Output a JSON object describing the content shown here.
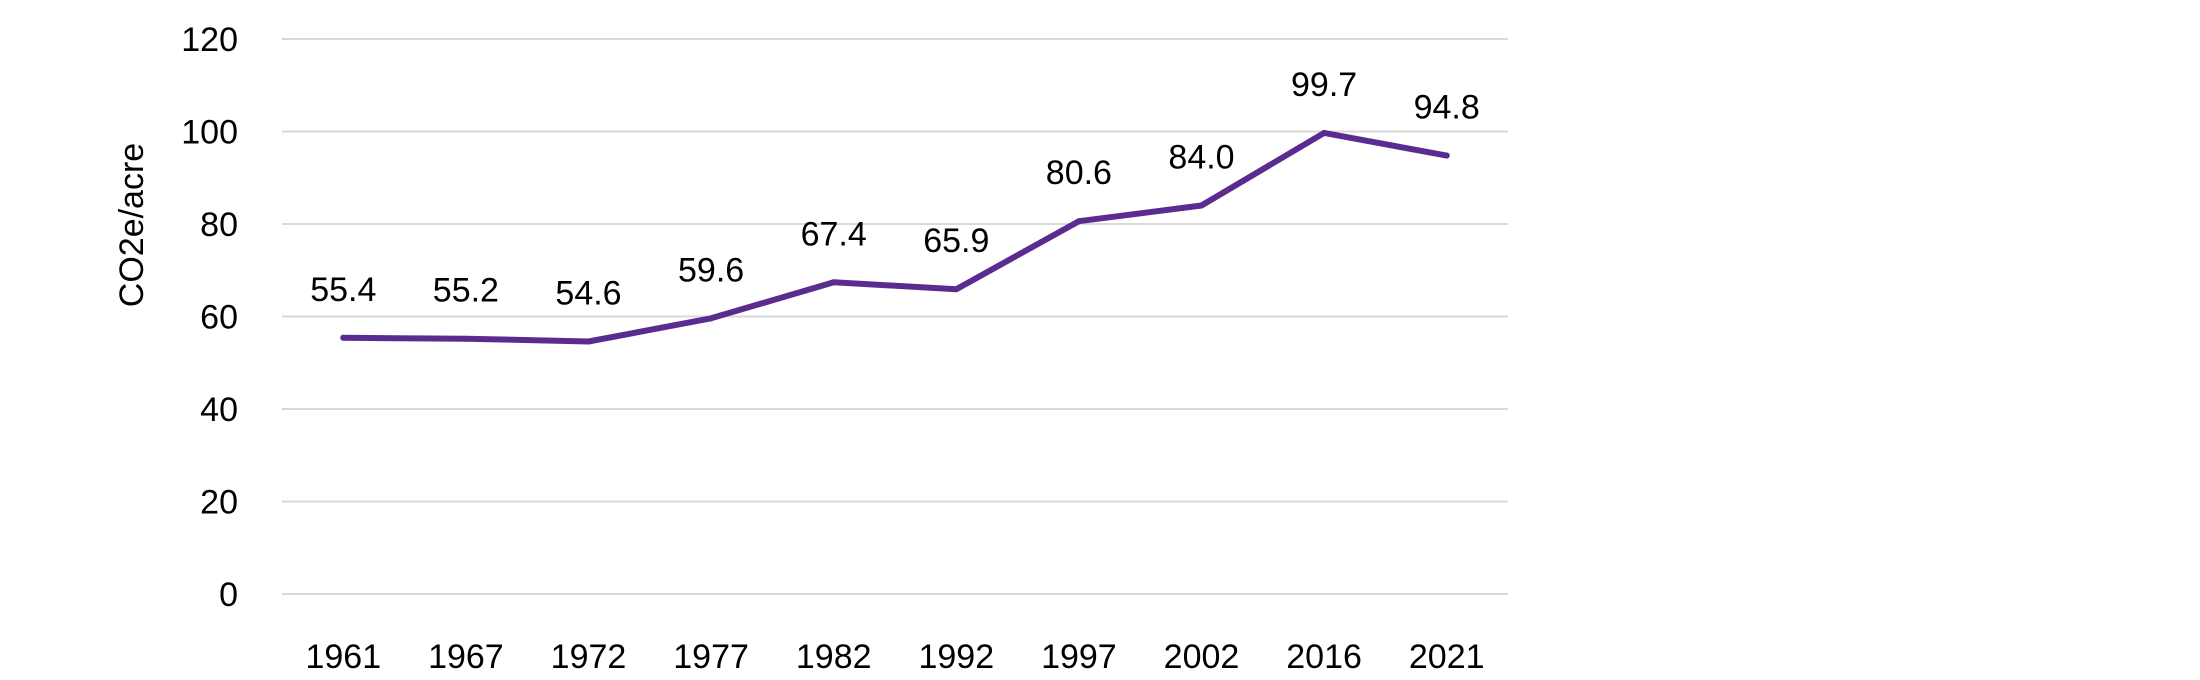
{
  "chart_data": {
    "type": "line",
    "title": "",
    "xlabel": "",
    "ylabel": "CO2e/acre",
    "categories": [
      "1961",
      "1967",
      "1972",
      "1977",
      "1982",
      "1992",
      "1997",
      "2002",
      "2016",
      "2021"
    ],
    "series": [
      {
        "values": [
          55.4,
          55.2,
          54.6,
          59.6,
          67.4,
          65.9,
          80.6,
          84.0,
          99.7,
          94.8
        ],
        "data_labels": [
          "55.4",
          "55.2",
          "54.6",
          "59.6",
          "67.4",
          "65.9",
          "80.6",
          "84.0",
          "99.7",
          "94.8"
        ],
        "color": "#5b2c8f"
      }
    ],
    "ylim": [
      0,
      120
    ],
    "yticks": [
      0,
      20,
      40,
      60,
      80,
      100,
      120
    ],
    "grid": true,
    "legend": "none",
    "gridline_color": "#d9d9d9"
  }
}
